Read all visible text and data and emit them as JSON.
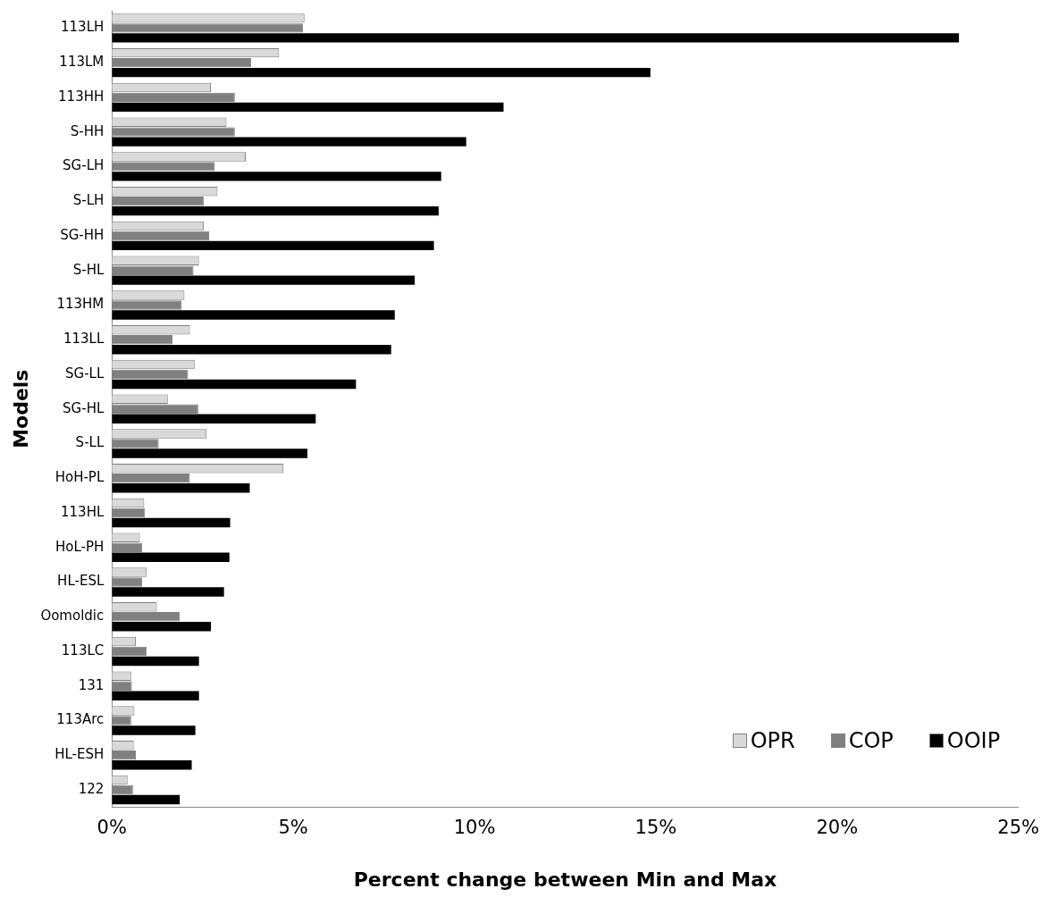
{
  "chart_data": {
    "type": "bar",
    "orientation": "horizontal",
    "xlabel": "Percent change between Min and Max",
    "ylabel": "Models",
    "categories": [
      "113LH",
      "113LM",
      "113HH",
      "S-HH",
      "SG-LH",
      "S-LH",
      "SG-HH",
      "S-HL",
      "113HM",
      "113LL",
      "SG-LL",
      "SG-HL",
      "S-LL",
      "HoH-PL",
      "113HL",
      "HoL-PH",
      "HL-ESL",
      "Oomoldic",
      "113LC",
      "131",
      "113Arc",
      "HL-ESH",
      "122"
    ],
    "series": [
      {
        "name": "OPR",
        "color": "#d9d9d9",
        "values": [
          5.31,
          4.61,
          2.73,
          3.16,
          3.69,
          2.91,
          2.53,
          2.4,
          2.0,
          2.15,
          2.28,
          1.54,
          2.61,
          4.73,
          0.89,
          0.77,
          0.96,
          1.24,
          0.66,
          0.53,
          0.62,
          0.6,
          0.43
        ]
      },
      {
        "name": "COP",
        "color": "#808080",
        "values": [
          5.27,
          3.84,
          3.39,
          3.39,
          2.84,
          2.53,
          2.68,
          2.25,
          1.92,
          1.67,
          2.1,
          2.38,
          1.29,
          2.15,
          0.91,
          0.83,
          0.83,
          1.87,
          0.96,
          0.55,
          0.53,
          0.66,
          0.58
        ]
      },
      {
        "name": "OOIP",
        "color": "#000000",
        "values": [
          23.36,
          14.85,
          10.8,
          9.77,
          9.08,
          9.01,
          8.88,
          8.35,
          7.8,
          7.7,
          6.73,
          5.62,
          5.39,
          3.8,
          3.26,
          3.24,
          3.09,
          2.73,
          2.4,
          2.4,
          2.3,
          2.2,
          1.87
        ]
      }
    ],
    "xlim": [
      0,
      25
    ],
    "xticks": [
      {
        "value": 0,
        "label": "0%"
      },
      {
        "value": 5,
        "label": "5%"
      },
      {
        "value": 10,
        "label": "10%"
      },
      {
        "value": 15,
        "label": "15%"
      },
      {
        "value": 20,
        "label": "20%"
      },
      {
        "value": 25,
        "label": "25%"
      }
    ],
    "grid": false,
    "legend": "bottom right"
  }
}
